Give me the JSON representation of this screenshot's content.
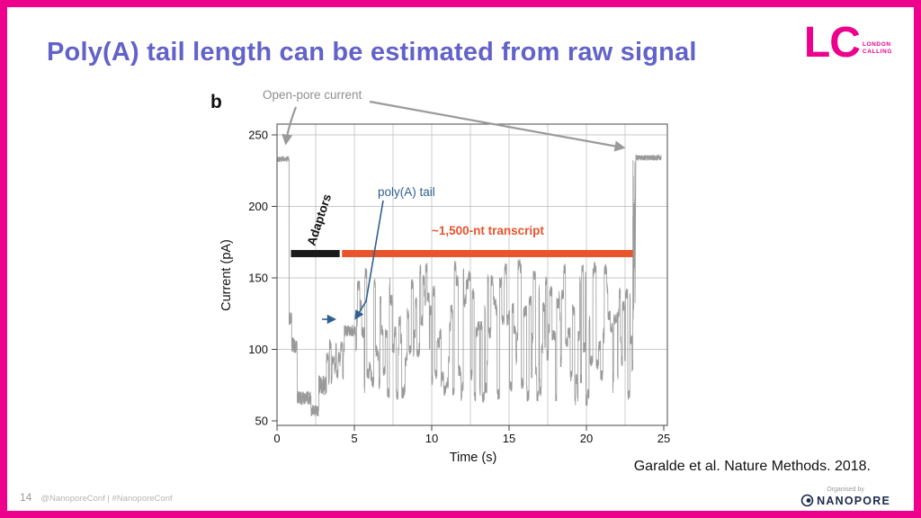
{
  "header": {
    "title": "Poly(A) tail length can be estimated from raw signal",
    "lc_logo": {
      "text": "LC",
      "sub_line1": "LONDON",
      "sub_line2": "CALLING"
    }
  },
  "main": {
    "citation": "Garalde et al. Nature Methods. 2018."
  },
  "footer": {
    "page_number": "14",
    "social": "@NanoporeConf | #NanoporeConf",
    "organised_by": "Organised by",
    "nanopore_wordmark": "NANOPORE"
  },
  "colors": {
    "border_pink": "#ec008c",
    "title_purple": "#6262ca",
    "annotation_blue": "#2e6091",
    "transcript_orange": "#e8542c",
    "adaptor_black": "#1a1a1a",
    "trace_gray": "#9a9a9a",
    "label_gray": "#8f8f8f",
    "nanopore_navy": "#1b2a4a"
  },
  "chart_data": {
    "type": "line",
    "panel_label": "b",
    "xlabel": "Time (s)",
    "ylabel": "Current (pA)",
    "xlim": [
      0,
      25
    ],
    "ylim": [
      45,
      258
    ],
    "xticks": [
      0,
      5,
      10,
      15,
      20,
      25
    ],
    "yticks": [
      50,
      100,
      150,
      200,
      250
    ],
    "x_grid": [
      2.5,
      5,
      7.5,
      10,
      12.5,
      15,
      17.5,
      20,
      22.5
    ],
    "y_grid": [
      100,
      150,
      200,
      250
    ],
    "grid": true,
    "legend": "none",
    "series_name": "raw nanopore current trace",
    "annotations": {
      "open_pore": "Open-pore current",
      "adaptors": "Adaptors",
      "polya_tail": "poly(A) tail",
      "transcript": "~1,500-nt transcript"
    },
    "regions": {
      "adaptor_bar": {
        "t": [
          0.9,
          4.05
        ],
        "current_pA": 167,
        "color": "#1a1a1a"
      },
      "transcript_bar": {
        "t": [
          4.2,
          23.0
        ],
        "current_pA": 167,
        "color": "#e8542c"
      }
    },
    "signal_levels_pA": {
      "open_pore": 233,
      "adaptor": 70,
      "polya_tail": 113,
      "transcript_min": 65,
      "transcript_max": 160
    },
    "signal_segments": [
      {
        "t": [
          0.0,
          0.78
        ],
        "level": 233,
        "noise": 2,
        "mode": "flat"
      },
      {
        "t": [
          0.78,
          0.95
        ],
        "level": 122,
        "noise": 5,
        "mode": "flat"
      },
      {
        "t": [
          0.95,
          1.3
        ],
        "level": 103,
        "noise": 6,
        "mode": "flat"
      },
      {
        "t": [
          1.3,
          2.2
        ],
        "level": 66,
        "noise": 5,
        "mode": "flat"
      },
      {
        "t": [
          2.2,
          2.7
        ],
        "level": 57,
        "noise": 4,
        "mode": "flat"
      },
      {
        "t": [
          2.7,
          3.2
        ],
        "level": 75,
        "noise": 7,
        "mode": "flat"
      },
      {
        "t": [
          3.2,
          4.35
        ],
        "level": 93,
        "noise": 9,
        "mode": "steps"
      },
      {
        "t": [
          4.35,
          5.1
        ],
        "level": 113,
        "noise": 4,
        "mode": "flat"
      },
      {
        "t": [
          5.1,
          23.0
        ],
        "level": 112,
        "noise": 30,
        "mode": "steps"
      },
      {
        "t": [
          23.0,
          23.15
        ],
        "level": 175,
        "noise": 58,
        "mode": "flat"
      },
      {
        "t": [
          23.2,
          24.85
        ],
        "level": 234,
        "noise": 2,
        "mode": "flat"
      }
    ]
  }
}
